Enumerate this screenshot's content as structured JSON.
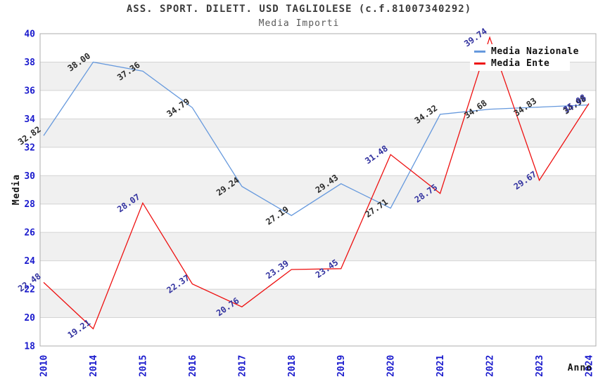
{
  "header": {
    "title": "ASS. SPORT. DILETT. USD TAGLIOLESE (c.f.81007340292)",
    "subtitle": "Media Importi"
  },
  "chart_data": {
    "type": "line",
    "title": "ASS. SPORT. DILETT. USD TAGLIOLESE (c.f.81007340292)",
    "subtitle": "Media Importi",
    "xlabel": "Anno",
    "ylabel": "Media",
    "categories": [
      "2010",
      "2014",
      "2015",
      "2016",
      "2017",
      "2018",
      "2019",
      "2020",
      "2021",
      "2022",
      "2023",
      "2024"
    ],
    "series": [
      {
        "name": "Media Nazionale",
        "color": "#6699dd",
        "label_color": "#2b2b2b",
        "values": [
          32.82,
          38.0,
          37.36,
          34.79,
          29.24,
          27.19,
          29.43,
          27.71,
          34.32,
          34.68,
          34.83,
          34.98
        ]
      },
      {
        "name": "Media Ente",
        "color": "#ee1111",
        "label_color": "#32329f",
        "values": [
          22.48,
          19.21,
          28.07,
          22.37,
          20.76,
          23.39,
          23.45,
          31.48,
          28.75,
          39.74,
          29.67,
          35.08
        ]
      }
    ],
    "ylim": [
      18,
      40
    ],
    "ytick_step": 2,
    "yticks": [
      "18",
      "20",
      "22",
      "24",
      "26",
      "28",
      "30",
      "32",
      "34",
      "36",
      "38",
      "40"
    ],
    "grid": true,
    "alternating_bands": true,
    "legend_position": "top-right",
    "colors": {
      "tick_label": "#1a1acd",
      "band_fill": "#f0f0f0",
      "gridline": "#d4d4d4",
      "plot_border": "#aeaeae",
      "axis_title": "#111111"
    }
  },
  "legend": {
    "items": [
      {
        "label": "Media Nazionale"
      },
      {
        "label": "Media Ente"
      }
    ]
  }
}
